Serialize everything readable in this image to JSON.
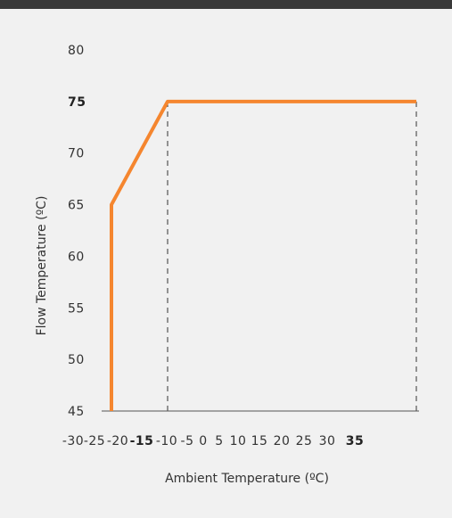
{
  "chart_data": {
    "type": "line",
    "title": "",
    "xlabel": "Ambient Temperature (ºC)",
    "ylabel": "Flow Temperature (ºC)",
    "xlim": [
      -30,
      35
    ],
    "ylim": [
      45,
      80
    ],
    "x_ticks": [
      -30,
      -25,
      -20,
      -15,
      -10,
      -5,
      0,
      5,
      10,
      15,
      20,
      25,
      30,
      35
    ],
    "x_ticks_bold": [
      -15,
      35
    ],
    "y_ticks": [
      45,
      50,
      55,
      60,
      65,
      70,
      75,
      80
    ],
    "y_ticks_bold": [
      75
    ],
    "series": [
      {
        "x": [
          -25,
          -25,
          -15,
          35
        ],
        "y": [
          45,
          65,
          75,
          75
        ],
        "color": "#f5862f"
      }
    ],
    "reference_lines": [
      {
        "x": -15,
        "y_from": 45,
        "y_to": 75,
        "style": "dashed"
      },
      {
        "x": 35,
        "y_from": 45,
        "y_to": 75,
        "style": "dashed"
      }
    ],
    "grid": false
  }
}
